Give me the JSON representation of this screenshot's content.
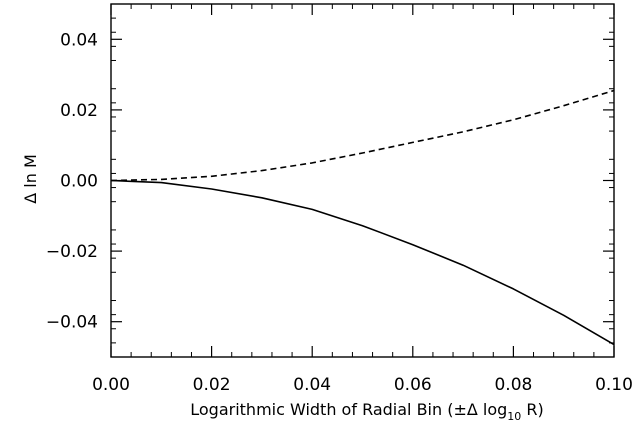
{
  "chart_data": {
    "type": "line",
    "title": "",
    "xlabel": "Logarithmic Width of Radial Bin (±Δ log₁₀ R)",
    "ylabel": "Δ ln M",
    "xlim": [
      0.0,
      0.1
    ],
    "ylim": [
      -0.05,
      0.05
    ],
    "x_ticks": [
      "0.00",
      "0.02",
      "0.04",
      "0.06",
      "0.08",
      "0.10"
    ],
    "y_ticks": [
      "−0.04",
      "−0.02",
      "0.00",
      "0.02",
      "0.04"
    ],
    "grid": false,
    "legend": "none",
    "x": [
      0.0,
      0.01,
      0.02,
      0.03,
      0.04,
      0.05,
      0.06,
      0.07,
      0.08,
      0.09,
      0.1
    ],
    "series": [
      {
        "style": "dashed",
        "values": [
          0.0,
          0.0003,
          0.0012,
          0.0028,
          0.005,
          0.0078,
          0.0108,
          0.0138,
          0.0172,
          0.0212,
          0.0255
        ]
      },
      {
        "style": "solid",
        "values": [
          0.0,
          -0.0006,
          -0.0024,
          -0.0049,
          -0.0082,
          -0.0128,
          -0.0182,
          -0.024,
          -0.0307,
          -0.0382,
          -0.0465
        ]
      }
    ]
  }
}
